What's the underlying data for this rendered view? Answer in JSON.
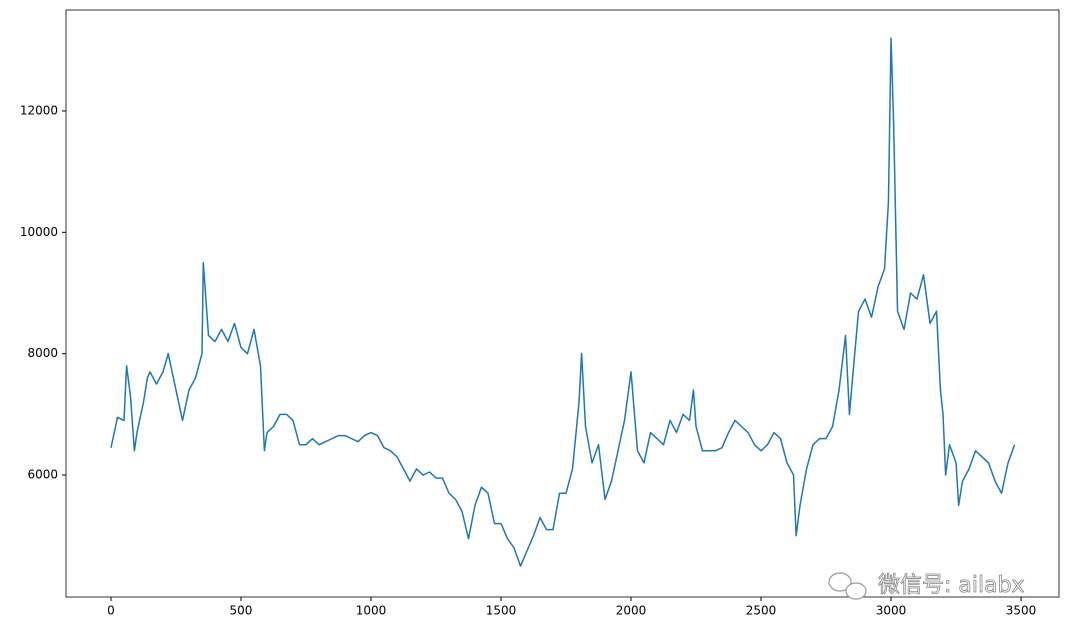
{
  "chart_data": {
    "type": "line",
    "x": [
      0,
      25,
      50,
      60,
      75,
      90,
      100,
      125,
      140,
      150,
      175,
      200,
      220,
      250,
      275,
      300,
      325,
      350,
      355,
      375,
      400,
      425,
      450,
      475,
      500,
      525,
      550,
      575,
      590,
      600,
      625,
      650,
      675,
      700,
      725,
      750,
      775,
      800,
      825,
      850,
      875,
      900,
      925,
      950,
      975,
      1000,
      1025,
      1050,
      1075,
      1100,
      1125,
      1150,
      1175,
      1200,
      1225,
      1250,
      1275,
      1300,
      1325,
      1350,
      1375,
      1400,
      1425,
      1450,
      1475,
      1500,
      1525,
      1550,
      1575,
      1600,
      1625,
      1650,
      1675,
      1700,
      1725,
      1750,
      1775,
      1800,
      1810,
      1825,
      1850,
      1875,
      1900,
      1925,
      1950,
      1975,
      2000,
      2025,
      2050,
      2075,
      2100,
      2125,
      2150,
      2175,
      2200,
      2225,
      2240,
      2250,
      2275,
      2300,
      2325,
      2350,
      2375,
      2400,
      2425,
      2450,
      2475,
      2500,
      2525,
      2550,
      2575,
      2600,
      2625,
      2635,
      2650,
      2675,
      2700,
      2725,
      2750,
      2775,
      2800,
      2825,
      2840,
      2850,
      2875,
      2900,
      2925,
      2950,
      2975,
      2990,
      3000,
      3010,
      3025,
      3050,
      3075,
      3100,
      3125,
      3150,
      3175,
      3190,
      3200,
      3210,
      3225,
      3250,
      3260,
      3275,
      3300,
      3325,
      3350,
      3375,
      3400,
      3425,
      3450,
      3475
    ],
    "values": [
      6450,
      6950,
      6900,
      7800,
      7300,
      6400,
      6700,
      7200,
      7600,
      7700,
      7500,
      7700,
      8000,
      7400,
      6900,
      7400,
      7600,
      8000,
      9500,
      8300,
      8200,
      8400,
      8200,
      8500,
      8100,
      8000,
      8400,
      7800,
      6400,
      6700,
      6800,
      7000,
      7000,
      6900,
      6500,
      6500,
      6600,
      6500,
      6550,
      6600,
      6650,
      6650,
      6600,
      6550,
      6650,
      6700,
      6650,
      6450,
      6400,
      6300,
      6100,
      5900,
      6100,
      6000,
      6050,
      5950,
      5950,
      5700,
      5600,
      5400,
      4950,
      5500,
      5800,
      5700,
      5200,
      5200,
      4950,
      4800,
      4500,
      4750,
      5000,
      5300,
      5100,
      5100,
      5700,
      5700,
      6100,
      7200,
      8000,
      6800,
      6200,
      6500,
      5600,
      5900,
      6400,
      6900,
      7700,
      6400,
      6200,
      6700,
      6600,
      6500,
      6900,
      6700,
      7000,
      6900,
      7400,
      6800,
      6400,
      6400,
      6400,
      6450,
      6700,
      6900,
      6800,
      6700,
      6500,
      6400,
      6500,
      6700,
      6600,
      6200,
      6000,
      5000,
      5500,
      6100,
      6500,
      6600,
      6600,
      6800,
      7400,
      8300,
      7000,
      7500,
      8700,
      8900,
      8600,
      9100,
      9400,
      10500,
      13200,
      11800,
      8700,
      8400,
      9000,
      8900,
      9300,
      8500,
      8700,
      7400,
      7000,
      6000,
      6500,
      6200,
      5500,
      5900,
      6100,
      6400,
      6300,
      6200,
      5900,
      5700,
      6200,
      6500
    ],
    "color": "#1f77b4",
    "xlim": [
      -173,
      3646
    ],
    "xticks": [
      0,
      500,
      1000,
      1500,
      2000,
      2500,
      3000,
      3500
    ],
    "ylim": [
      3990,
      13664
    ],
    "yticks": [
      6000,
      8000,
      10000,
      12000
    ],
    "annotation": "微信号: ailabx"
  }
}
